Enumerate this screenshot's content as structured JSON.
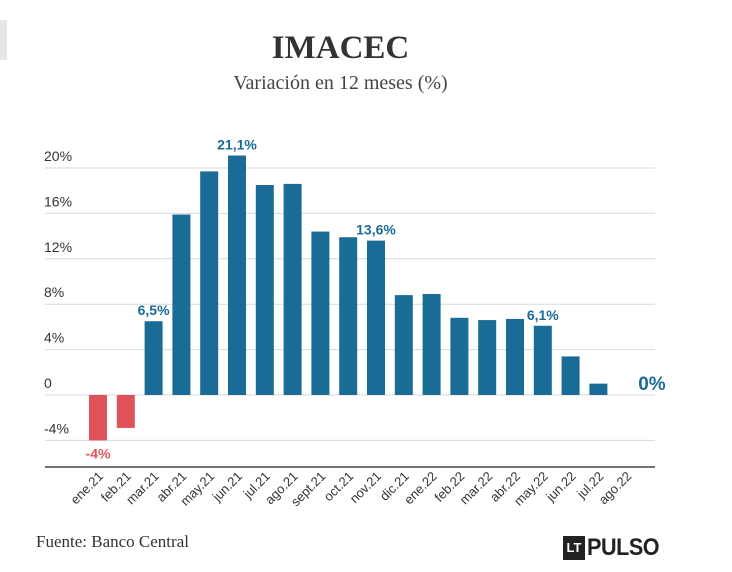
{
  "header": {
    "title": "IMACEC",
    "subtitle": "Variación en 12 meses (%)"
  },
  "footer": {
    "source": "Fuente: Banco Central",
    "logo_mark": "LT",
    "logo_text": "PULSO"
  },
  "colors": {
    "positive": "#1a6b96",
    "negative": "#e0525a",
    "grid": "#d9d9d9",
    "axis": "#444444",
    "label_positive": "#1a6b96",
    "label_negative": "#e0525a"
  },
  "chart_data": {
    "type": "bar",
    "title": "IMACEC",
    "subtitle": "Variación en 12 meses (%)",
    "xlabel": "",
    "ylabel": "",
    "ylim": [
      -8,
      24
    ],
    "grid": true,
    "yticks": [
      {
        "value": 20,
        "label": "20%"
      },
      {
        "value": 16,
        "label": "16%"
      },
      {
        "value": 12,
        "label": "12%"
      },
      {
        "value": 8,
        "label": "8%"
      },
      {
        "value": 4,
        "label": "4%"
      },
      {
        "value": 0,
        "label": "0"
      },
      {
        "value": -4,
        "label": "-4%"
      }
    ],
    "categories": [
      "ene.21",
      "feb.21",
      "mar.21",
      "abr.21",
      "may.21",
      "jun.21",
      "jul.21",
      "ago.21",
      "sept.21",
      "oct.21",
      "nov.21",
      "dic.21",
      "ene.22",
      "feb.22",
      "mar.22",
      "abr.22",
      "may.22",
      "jun.22",
      "jul.22",
      "ago.22"
    ],
    "values": [
      -4.0,
      -2.9,
      6.5,
      15.9,
      19.7,
      21.1,
      18.5,
      18.6,
      14.4,
      13.9,
      13.6,
      8.8,
      8.9,
      6.8,
      6.6,
      6.7,
      6.1,
      3.4,
      1.0,
      0.0
    ],
    "data_labels": [
      {
        "index": 0,
        "text": "-4%"
      },
      {
        "index": 2,
        "text": "6,5%"
      },
      {
        "index": 5,
        "text": "21,1%"
      },
      {
        "index": 10,
        "text": "13,6%"
      },
      {
        "index": 16,
        "text": "6,1%"
      },
      {
        "index": 19,
        "text": "0%"
      }
    ]
  }
}
